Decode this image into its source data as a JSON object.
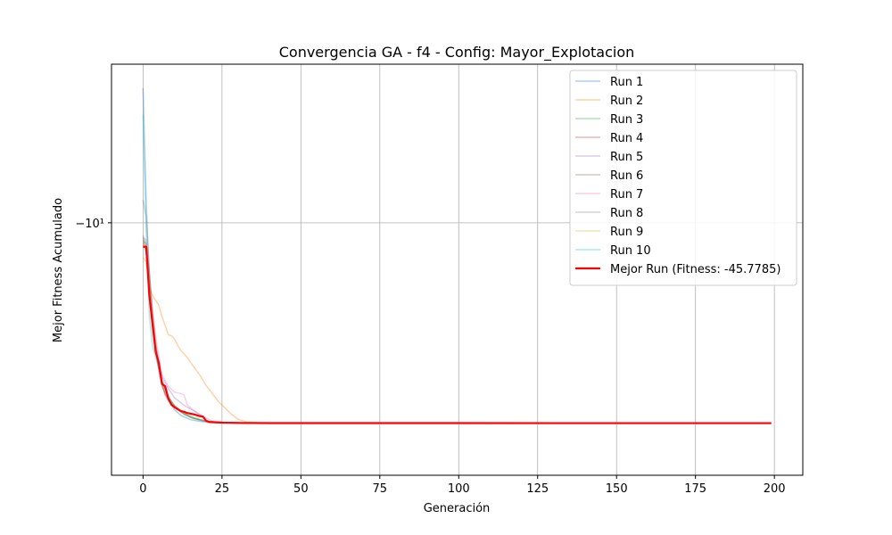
{
  "chart_data": {
    "type": "line",
    "title": "Convergencia GA - f4 - Config: Mayor_Explotacion",
    "xlabel": "Generación",
    "ylabel": "Mejor Fitness Acumulado",
    "yscale": "symlog",
    "xlim": [
      -10,
      209
    ],
    "ylim": [
      -3,
      -68
    ],
    "x_ticks": [
      0,
      25,
      50,
      75,
      100,
      125,
      150,
      175,
      200
    ],
    "x_tick_labels": [
      "0",
      "25",
      "50",
      "75",
      "100",
      "125",
      "150",
      "175",
      "200"
    ],
    "y_ticks": [
      -10
    ],
    "y_tick_labels": [
      "−10¹"
    ],
    "grid": true,
    "legend_position": "top-right",
    "series": [
      {
        "name": "Run 1",
        "color": "#1f77b4",
        "points": [
          [
            0,
            -3.6
          ],
          [
            1,
            -8.6
          ],
          [
            2,
            -15.4
          ],
          [
            3,
            -21.0
          ],
          [
            4,
            -26.0
          ],
          [
            5,
            -30.6
          ],
          [
            6,
            -34.6
          ],
          [
            8,
            -38.6
          ],
          [
            10,
            -41.4
          ],
          [
            12,
            -43.2
          ],
          [
            15,
            -44.6
          ],
          [
            18,
            -45.2
          ],
          [
            22,
            -45.6
          ],
          [
            30,
            -45.76
          ],
          [
            40,
            -45.77
          ],
          [
            199,
            -45.7785
          ]
        ]
      },
      {
        "name": "Run 2",
        "color": "#ff7f0e",
        "points": [
          [
            0,
            -13.0
          ],
          [
            1,
            -13.5
          ],
          [
            2,
            -16.0
          ],
          [
            3,
            -17.4
          ],
          [
            4,
            -18.0
          ],
          [
            5,
            -18.7
          ],
          [
            6,
            -20.4
          ],
          [
            7,
            -21.8
          ],
          [
            8,
            -23.4
          ],
          [
            9,
            -23.6
          ],
          [
            10,
            -24.2
          ],
          [
            11,
            -25.4
          ],
          [
            12,
            -26.4
          ],
          [
            14,
            -27.8
          ],
          [
            16,
            -29.8
          ],
          [
            18,
            -31.8
          ],
          [
            20,
            -34.4
          ],
          [
            22,
            -36.6
          ],
          [
            24,
            -39.0
          ],
          [
            26,
            -40.8
          ],
          [
            28,
            -42.8
          ],
          [
            30,
            -44.4
          ],
          [
            33,
            -45.4
          ],
          [
            38,
            -45.7
          ],
          [
            50,
            -45.77
          ],
          [
            199,
            -45.7785
          ]
        ]
      },
      {
        "name": "Run 3",
        "color": "#2ca02c",
        "points": [
          [
            0,
            -11.2
          ],
          [
            1,
            -12.6
          ],
          [
            2,
            -17.2
          ],
          [
            3,
            -22.4
          ],
          [
            4,
            -27.0
          ],
          [
            5,
            -30.2
          ],
          [
            6,
            -33.2
          ],
          [
            8,
            -37.6
          ],
          [
            10,
            -40.4
          ],
          [
            13,
            -42.8
          ],
          [
            16,
            -44.2
          ],
          [
            20,
            -45.2
          ],
          [
            25,
            -45.6
          ],
          [
            35,
            -45.77
          ],
          [
            199,
            -45.7785
          ]
        ]
      },
      {
        "name": "Run 4",
        "color": "#d62728",
        "points": [
          [
            0,
            -11.6
          ],
          [
            1,
            -12.4
          ],
          [
            2,
            -15.8
          ],
          [
            3,
            -20.6
          ],
          [
            4,
            -26.4
          ],
          [
            5,
            -30.4
          ],
          [
            6,
            -34.2
          ],
          [
            7,
            -37.0
          ],
          [
            9,
            -39.6
          ],
          [
            12,
            -42.0
          ],
          [
            15,
            -43.8
          ],
          [
            19,
            -45.0
          ],
          [
            24,
            -45.6
          ],
          [
            35,
            -45.77
          ],
          [
            199,
            -45.7785
          ]
        ]
      },
      {
        "name": "Run 5",
        "color": "#9467bd",
        "points": [
          [
            0,
            -11.0
          ],
          [
            1,
            -11.8
          ],
          [
            2,
            -16.2
          ],
          [
            3,
            -21.0
          ],
          [
            4,
            -25.6
          ],
          [
            5,
            -29.4
          ],
          [
            6,
            -32.2
          ],
          [
            8,
            -35.2
          ],
          [
            10,
            -37.8
          ],
          [
            13,
            -40.0
          ],
          [
            16,
            -41.6
          ],
          [
            18,
            -42.8
          ],
          [
            19,
            -43.6
          ],
          [
            20,
            -45.2
          ],
          [
            25,
            -45.6
          ],
          [
            35,
            -45.77
          ],
          [
            199,
            -45.7785
          ]
        ]
      },
      {
        "name": "Run 6",
        "color": "#8c564b",
        "points": [
          [
            0,
            -11.4
          ],
          [
            1,
            -11.8
          ],
          [
            2,
            -14.6
          ],
          [
            3,
            -19.8
          ],
          [
            4,
            -24.8
          ],
          [
            5,
            -29.0
          ],
          [
            6,
            -33.4
          ],
          [
            7,
            -36.4
          ],
          [
            9,
            -39.2
          ],
          [
            12,
            -41.8
          ],
          [
            15,
            -43.6
          ],
          [
            19,
            -44.8
          ],
          [
            24,
            -45.5
          ],
          [
            35,
            -45.77
          ],
          [
            199,
            -45.7785
          ]
        ]
      },
      {
        "name": "Run 7",
        "color": "#e377c2",
        "points": [
          [
            0,
            -11.2
          ],
          [
            1,
            -11.4
          ],
          [
            2,
            -14.8
          ],
          [
            3,
            -19.2
          ],
          [
            4,
            -23.6
          ],
          [
            5,
            -27.6
          ],
          [
            6,
            -31.6
          ],
          [
            8,
            -34.6
          ],
          [
            10,
            -36.2
          ],
          [
            12,
            -36.6
          ],
          [
            13,
            -37.0
          ],
          [
            14,
            -39.8
          ],
          [
            16,
            -41.6
          ],
          [
            19,
            -43.6
          ],
          [
            22,
            -45.0
          ],
          [
            26,
            -45.6
          ],
          [
            35,
            -45.77
          ],
          [
            199,
            -45.7785
          ]
        ]
      },
      {
        "name": "Run 8",
        "color": "#7f7f7f",
        "points": [
          [
            0,
            -8.4
          ],
          [
            1,
            -9.6
          ],
          [
            2,
            -14.6
          ],
          [
            3,
            -20.6
          ],
          [
            4,
            -25.4
          ],
          [
            5,
            -29.6
          ],
          [
            6,
            -33.4
          ],
          [
            8,
            -37.4
          ],
          [
            10,
            -40.2
          ],
          [
            13,
            -42.6
          ],
          [
            16,
            -44.0
          ],
          [
            20,
            -45.1
          ],
          [
            25,
            -45.6
          ],
          [
            35,
            -45.77
          ],
          [
            199,
            -45.7785
          ]
        ]
      },
      {
        "name": "Run 9",
        "color": "#bcbd22",
        "points": [
          [
            0,
            -11.4
          ],
          [
            1,
            -12.2
          ],
          [
            2,
            -15.6
          ],
          [
            3,
            -20.6
          ],
          [
            4,
            -25.8
          ],
          [
            5,
            -29.8
          ],
          [
            6,
            -33.6
          ],
          [
            8,
            -37.6
          ],
          [
            10,
            -40.2
          ],
          [
            13,
            -42.6
          ],
          [
            16,
            -44.0
          ],
          [
            20,
            -45.1
          ],
          [
            25,
            -45.6
          ],
          [
            35,
            -45.77
          ],
          [
            199,
            -45.7785
          ]
        ]
      },
      {
        "name": "Run 10",
        "color": "#17becf",
        "points": [
          [
            0,
            -4.4
          ],
          [
            1,
            -10.8
          ],
          [
            2,
            -20.4
          ],
          [
            3,
            -25.6
          ],
          [
            4,
            -27.8
          ],
          [
            5,
            -30.2
          ],
          [
            6,
            -33.0
          ],
          [
            8,
            -37.2
          ],
          [
            10,
            -40.4
          ],
          [
            13,
            -42.8
          ],
          [
            16,
            -44.2
          ],
          [
            20,
            -45.2
          ],
          [
            25,
            -45.6
          ],
          [
            35,
            -45.77
          ],
          [
            199,
            -45.7785
          ]
        ]
      },
      {
        "name": "Mejor Run (Fitness: -45.7785)",
        "color": "#ff0000",
        "best": true,
        "points": [
          [
            0,
            -12.0
          ],
          [
            1,
            -12.0
          ],
          [
            2,
            -17.4
          ],
          [
            3,
            -21.6
          ],
          [
            4,
            -26.6
          ],
          [
            5,
            -29.0
          ],
          [
            6,
            -34.0
          ],
          [
            7,
            -34.6
          ],
          [
            8,
            -38.0
          ],
          [
            9,
            -39.8
          ],
          [
            10,
            -40.6
          ],
          [
            11,
            -41.2
          ],
          [
            12,
            -41.8
          ],
          [
            13,
            -42.0
          ],
          [
            14,
            -42.4
          ],
          [
            16,
            -42.8
          ],
          [
            18,
            -43.4
          ],
          [
            19,
            -43.6
          ],
          [
            20,
            -45.0
          ],
          [
            21,
            -45.4
          ],
          [
            25,
            -45.6
          ],
          [
            30,
            -45.7
          ],
          [
            40,
            -45.77
          ],
          [
            199,
            -45.7785
          ]
        ]
      }
    ]
  }
}
